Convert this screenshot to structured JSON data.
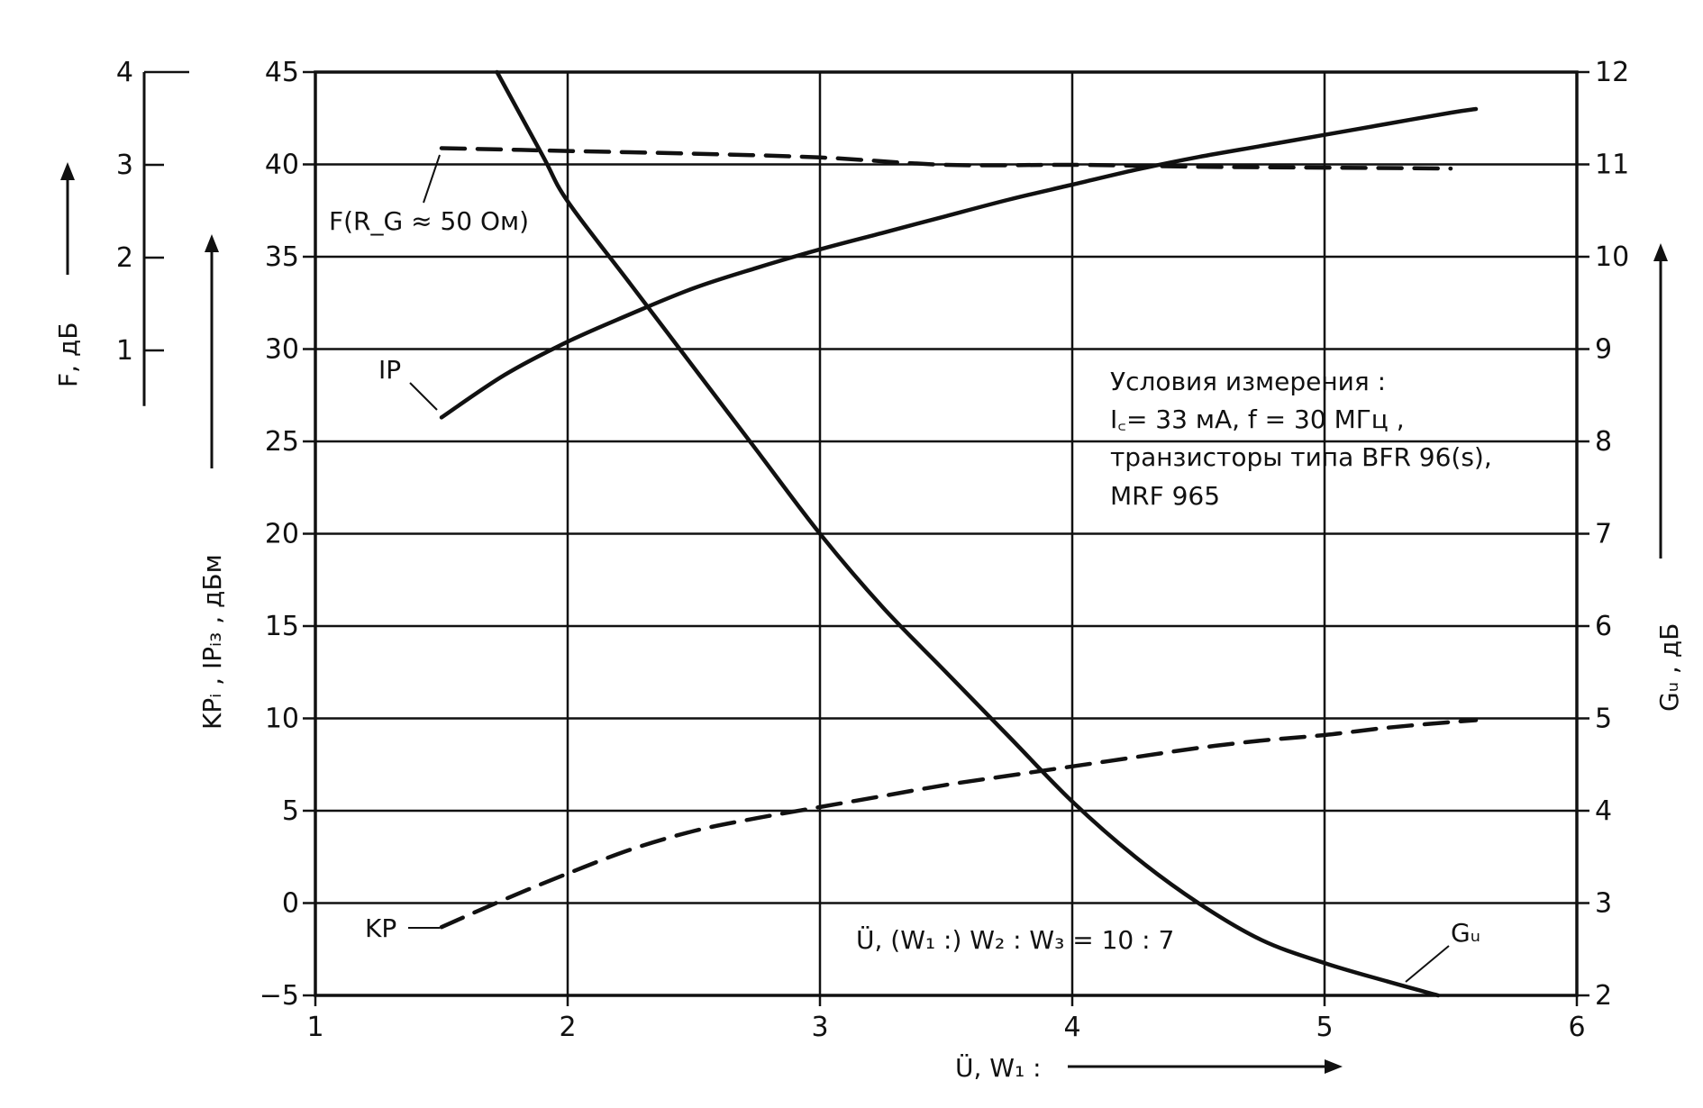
{
  "chart_data": {
    "type": "line",
    "x_axis": {
      "label": "Ü, W₁ :",
      "range": [
        1,
        6
      ],
      "ticks": [
        "1",
        "2",
        "3",
        "4",
        "5",
        "6"
      ]
    },
    "y_left_main": {
      "label": "KPᵢ , IPᵢ₃ , дБм",
      "range": [
        -5,
        45
      ],
      "ticks": [
        "−5",
        "0",
        "5",
        "10",
        "15",
        "20",
        "25",
        "30",
        "35",
        "40",
        "45"
      ]
    },
    "y_left_outer": {
      "label": "F, дБ",
      "range": [
        0,
        4
      ],
      "ticks": [
        "1",
        "2",
        "3",
        "4"
      ]
    },
    "y_right": {
      "label": "Gᵤ , дБ",
      "range": [
        2,
        12
      ],
      "ticks": [
        "2",
        "3",
        "4",
        "5",
        "6",
        "7",
        "8",
        "9",
        "10",
        "11",
        "12"
      ]
    },
    "grid": true,
    "series": [
      {
        "name": "IP",
        "axis": "left_main",
        "style": "solid",
        "x": [
          1.5,
          1.75,
          2.0,
          2.25,
          2.5,
          2.75,
          3.0,
          3.25,
          3.5,
          3.75,
          4.0,
          4.25,
          4.5,
          4.75,
          5.0,
          5.25,
          5.5,
          5.6
        ],
        "y": [
          26.3,
          28.6,
          30.4,
          31.9,
          33.3,
          34.4,
          35.4,
          36.3,
          37.2,
          38.1,
          38.9,
          39.7,
          40.4,
          41.0,
          41.6,
          42.2,
          42.8,
          43.0
        ]
      },
      {
        "name": "KP",
        "axis": "left_main",
        "style": "dashed",
        "x": [
          1.5,
          1.75,
          2.0,
          2.25,
          2.5,
          2.75,
          3.0,
          3.25,
          3.5,
          3.75,
          4.0,
          4.25,
          4.5,
          4.75,
          5.0,
          5.25,
          5.5,
          5.6
        ],
        "y": [
          -1.3,
          0.2,
          1.6,
          2.9,
          3.9,
          4.6,
          5.2,
          5.8,
          6.4,
          6.9,
          7.4,
          7.9,
          8.4,
          8.8,
          9.1,
          9.5,
          9.8,
          9.9
        ]
      },
      {
        "name": "F (R_G ≈ 50 Ом)",
        "axis": "left_outer",
        "style": "dashed",
        "x": [
          1.5,
          2.0,
          2.5,
          3.0,
          3.5,
          4.0,
          4.5,
          5.0,
          5.5
        ],
        "y": [
          3.18,
          3.15,
          3.12,
          3.08,
          3.0,
          3.0,
          2.98,
          2.97,
          2.96
        ]
      },
      {
        "name": "Gᵤ",
        "axis": "right",
        "style": "solid",
        "x": [
          1.72,
          1.9,
          2.0,
          2.25,
          2.5,
          2.75,
          3.0,
          3.25,
          3.5,
          3.75,
          4.0,
          4.25,
          4.5,
          4.75,
          5.0,
          5.25,
          5.45
        ],
        "y": [
          12.0,
          11.1,
          10.6,
          9.7,
          8.8,
          7.9,
          7.0,
          6.2,
          5.5,
          4.8,
          4.1,
          3.5,
          3.0,
          2.6,
          2.35,
          2.15,
          2.0
        ]
      }
    ],
    "annotations": {
      "conditions_title": "Условия измерения :",
      "conditions_line1": "I꜀= 33 мА,  f = 30 МГц ,",
      "conditions_line2": "транзисторы  типа  BFR 96(s),",
      "conditions_line3": "MRF  965",
      "ratio": "Ü, (W₁ :) W₂ : W₃  =  10 : 7",
      "label_ip": "IP",
      "label_kp": "KP",
      "label_gu": "Gᵤ",
      "label_f": "F(R_G ≈ 50 Ом)"
    }
  }
}
